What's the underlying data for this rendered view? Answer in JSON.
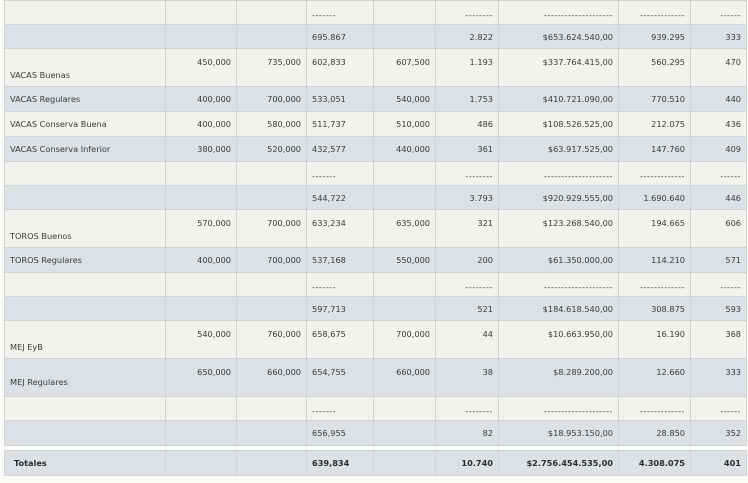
{
  "dash_short": "-------",
  "dash_mid": "--------",
  "dash_long": "--------------------",
  "dash_mid2": "-------------",
  "dash_last": "------",
  "rows": {
    "r_top_sum": {
      "c4": "695.867",
      "c6": "2.822",
      "c7": "$653.624.540,00",
      "c8": "939.295",
      "c9": "333"
    },
    "vacas_buenas": {
      "label": "VACAS Buenas",
      "c2": "450,000",
      "c3": "735,000",
      "c4": "602,833",
      "c5": "607,500",
      "c6": "1.193",
      "c7": "$337.764.415,00",
      "c8": "560.295",
      "c9": "470"
    },
    "vacas_regulares": {
      "label": "VACAS Regulares",
      "c2": "400,000",
      "c3": "700,000",
      "c4": "533,051",
      "c5": "540,000",
      "c6": "1.753",
      "c7": "$410.721.090,00",
      "c8": "770.510",
      "c9": "440"
    },
    "vacas_conserva_buena": {
      "label": "VACAS Conserva Buena",
      "c2": "400,000",
      "c3": "580,000",
      "c4": "511,737",
      "c5": "510,000",
      "c6": "486",
      "c7": "$108.526.525,00",
      "c8": "212.075",
      "c9": "436"
    },
    "vacas_conserva_inferior": {
      "label": "VACAS Conserva Inferior",
      "c2": "380,000",
      "c3": "520,000",
      "c4": "432,577",
      "c5": "440,000",
      "c6": "361",
      "c7": "$63.917.525,00",
      "c8": "147.760",
      "c9": "409"
    },
    "vacas_sum": {
      "c4": "544,722",
      "c6": "3.793",
      "c7": "$920.929.555,00",
      "c8": "1.690.640",
      "c9": "446"
    },
    "toros_buenos": {
      "label": "TOROS Buenos",
      "c2": "570,000",
      "c3": "700,000",
      "c4": "633,234",
      "c5": "635,000",
      "c6": "321",
      "c7": "$123.268.540,00",
      "c8": "194.665",
      "c9": "606"
    },
    "toros_regulares": {
      "label": "TOROS Regulares",
      "c2": "400,000",
      "c3": "700,000",
      "c4": "537,168",
      "c5": "550,000",
      "c6": "200",
      "c7": "$61.350.000,00",
      "c8": "114.210",
      "c9": "571"
    },
    "toros_sum": {
      "c4": "597,713",
      "c6": "521",
      "c7": "$184.618.540,00",
      "c8": "308.875",
      "c9": "593"
    },
    "mej_eyb": {
      "label": "MEJ EyB",
      "c2": "540,000",
      "c3": "760,000",
      "c4": "658,675",
      "c5": "700,000",
      "c6": "44",
      "c7": "$10.663.950,00",
      "c8": "16.190",
      "c9": "368"
    },
    "mej_regulares": {
      "label": "MEJ Regulares",
      "c2": "650,000",
      "c3": "660,000",
      "c4": "654,755",
      "c5": "660,000",
      "c6": "38",
      "c7": "$8.289.200,00",
      "c8": "12.660",
      "c9": "333"
    },
    "mej_sum": {
      "c4": "656,955",
      "c6": "82",
      "c7": "$18.953.150,00",
      "c8": "28.850",
      "c9": "352"
    },
    "totales": {
      "label": "Totales",
      "c4": "639,834",
      "c6": "10.740",
      "c7": "$2.756.454.535,00",
      "c8": "4.308.075",
      "c9": "401"
    }
  }
}
